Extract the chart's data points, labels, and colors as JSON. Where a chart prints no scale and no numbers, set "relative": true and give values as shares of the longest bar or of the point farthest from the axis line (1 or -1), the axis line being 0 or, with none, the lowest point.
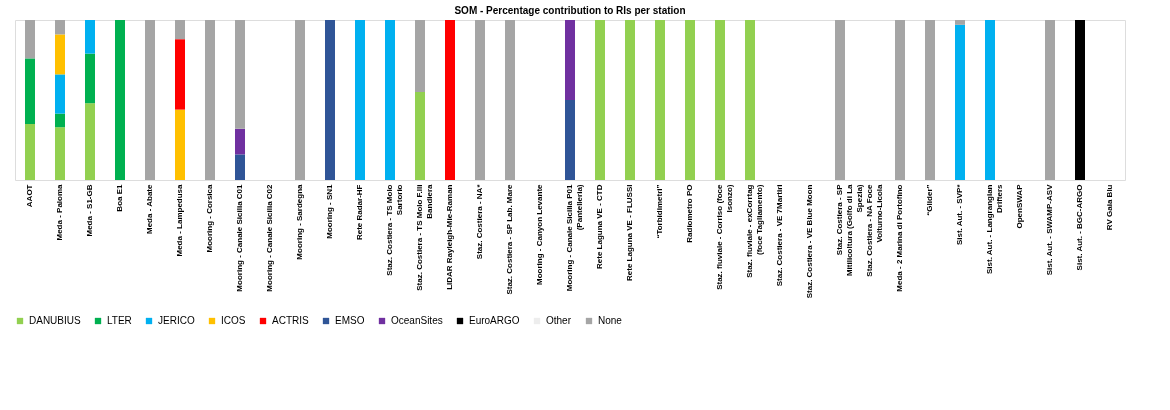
{
  "chart_data": {
    "type": "bar",
    "title": "SOM - Percentage contribution to RIs per station",
    "stacked": true,
    "relative": true,
    "legend": "bottom",
    "categories": [
      "AAOT",
      "Meda - Paloma",
      "Meda - S1-GB",
      "Boa E1",
      "Meda - Abate",
      "Meda - Lampedusa",
      "Mooring - Corsica",
      "Mooring - Canale Sicilia C01",
      "Mooring - Canale Sicilia C02",
      "Mooring - Sardegna",
      "Mooring - SN1",
      "Rete Radar-HF",
      "Staz. Costiera - TS Molo Sartorio",
      "Staz. Costiera - TS Molo F.lli Bandiera",
      "LIDAR Rayleigh-Mie-Raman",
      "Staz. Costiera - NA*",
      "Staz. Costiera - SP Lab. Mare",
      "Mooring - Canyon Levante",
      "Mooring - Canale Sicilia P01 (Pantelleria)",
      "Rete Laguna VE - CTD",
      "Rete Laguna VE - FLUSSI",
      "“Torbidimetri”",
      "Radiometro PO",
      "Staz. fluviale - Corriso (foce Isonzo)",
      "Staz. fluviale - exCorrtag (foce Tagliamento)",
      "Staz. Costiera - VE 7Martiri",
      "Staz. Costiera - VE Blue Moon",
      "Staz. Costiera - SP Mitilicoltura (Golfo di La Spezia)",
      "Staz. Costiera - NA Foce Volturno-Licola",
      "Meda - 2 Marina di Portofino",
      "“Glider”",
      "Sist. Aut. - SVP*",
      "Sist. Aut. - Langrangian Drifters",
      "OpenSWAP",
      "Sist. Aut. - SWAMP-ASV",
      "Sist. Aut. - BGC-ARGO",
      "RV Gaia Blu"
    ],
    "series": [
      {
        "name": "DANUBIUS",
        "color": "#92d050",
        "values": [
          0.35,
          0.33,
          0.48,
          null,
          null,
          null,
          null,
          null,
          null,
          null,
          null,
          null,
          null,
          0.55,
          null,
          null,
          null,
          null,
          null,
          1,
          1,
          1,
          1,
          1,
          1,
          null,
          null,
          null,
          null,
          null,
          null,
          null,
          null,
          null,
          null,
          null,
          null
        ]
      },
      {
        "name": "LTER",
        "color": "#00b050",
        "values": [
          0.41,
          0.085,
          0.31,
          1,
          null,
          null,
          null,
          null,
          null,
          null,
          null,
          null,
          null,
          null,
          null,
          null,
          null,
          null,
          null,
          null,
          null,
          null,
          null,
          null,
          null,
          null,
          null,
          null,
          null,
          null,
          null,
          null,
          null,
          null,
          null,
          null,
          null
        ]
      },
      {
        "name": "JERICO",
        "color": "#00b0f0",
        "values": [
          null,
          0.245,
          0.21,
          null,
          null,
          null,
          null,
          null,
          null,
          null,
          null,
          1,
          1,
          null,
          null,
          null,
          null,
          null,
          null,
          null,
          null,
          null,
          null,
          null,
          null,
          null,
          null,
          null,
          null,
          null,
          null,
          0.97,
          1,
          null,
          null,
          null,
          null
        ]
      },
      {
        "name": "ICOS",
        "color": "#ffc000",
        "values": [
          null,
          0.25,
          null,
          null,
          null,
          0.44,
          null,
          null,
          null,
          null,
          null,
          null,
          null,
          null,
          null,
          null,
          null,
          null,
          null,
          null,
          null,
          null,
          null,
          null,
          null,
          null,
          null,
          null,
          null,
          null,
          null,
          null,
          null,
          null,
          null,
          null,
          null
        ]
      },
      {
        "name": "ACTRIS",
        "color": "#ff0000",
        "values": [
          null,
          null,
          null,
          null,
          null,
          0.44,
          null,
          null,
          null,
          null,
          null,
          null,
          null,
          null,
          1,
          null,
          null,
          null,
          null,
          null,
          null,
          null,
          null,
          null,
          null,
          null,
          null,
          null,
          null,
          null,
          null,
          null,
          null,
          null,
          null,
          null,
          null
        ]
      },
      {
        "name": "EMSO",
        "color": "#2f5597",
        "values": [
          null,
          null,
          null,
          null,
          null,
          null,
          null,
          0.16,
          null,
          null,
          1,
          null,
          null,
          null,
          null,
          null,
          null,
          null,
          0.5,
          null,
          null,
          null,
          null,
          null,
          null,
          null,
          null,
          null,
          null,
          null,
          null,
          null,
          null,
          null,
          null,
          null,
          null
        ]
      },
      {
        "name": "OceanSites",
        "color": "#7030a0",
        "values": [
          null,
          null,
          null,
          null,
          null,
          null,
          null,
          0.16,
          null,
          null,
          null,
          null,
          null,
          null,
          null,
          null,
          null,
          null,
          0.5,
          null,
          null,
          null,
          null,
          null,
          null,
          null,
          null,
          null,
          null,
          null,
          null,
          null,
          null,
          null,
          null,
          null,
          null
        ]
      },
      {
        "name": "EuroARGO",
        "color": "#000000",
        "values": [
          null,
          null,
          null,
          null,
          null,
          null,
          null,
          null,
          null,
          null,
          null,
          null,
          null,
          null,
          null,
          null,
          null,
          null,
          null,
          null,
          null,
          null,
          null,
          null,
          null,
          null,
          null,
          null,
          null,
          null,
          null,
          null,
          null,
          null,
          null,
          1,
          null
        ]
      },
      {
        "name": "Other",
        "color": "#ededed",
        "values": [
          null,
          null,
          null,
          null,
          null,
          null,
          null,
          null,
          null,
          null,
          null,
          null,
          null,
          null,
          null,
          null,
          null,
          null,
          null,
          null,
          null,
          null,
          null,
          null,
          null,
          null,
          null,
          null,
          null,
          null,
          null,
          null,
          null,
          null,
          null,
          null,
          null
        ]
      },
      {
        "name": "None",
        "color": "#a5a5a5",
        "values": [
          0.24,
          0.09,
          null,
          null,
          1,
          0.12,
          1,
          0.68,
          null,
          1,
          null,
          null,
          null,
          0.45,
          null,
          1,
          1,
          null,
          null,
          null,
          null,
          null,
          null,
          null,
          null,
          null,
          null,
          1,
          null,
          1,
          1,
          0.03,
          null,
          null,
          1,
          null,
          null
        ]
      }
    ]
  }
}
